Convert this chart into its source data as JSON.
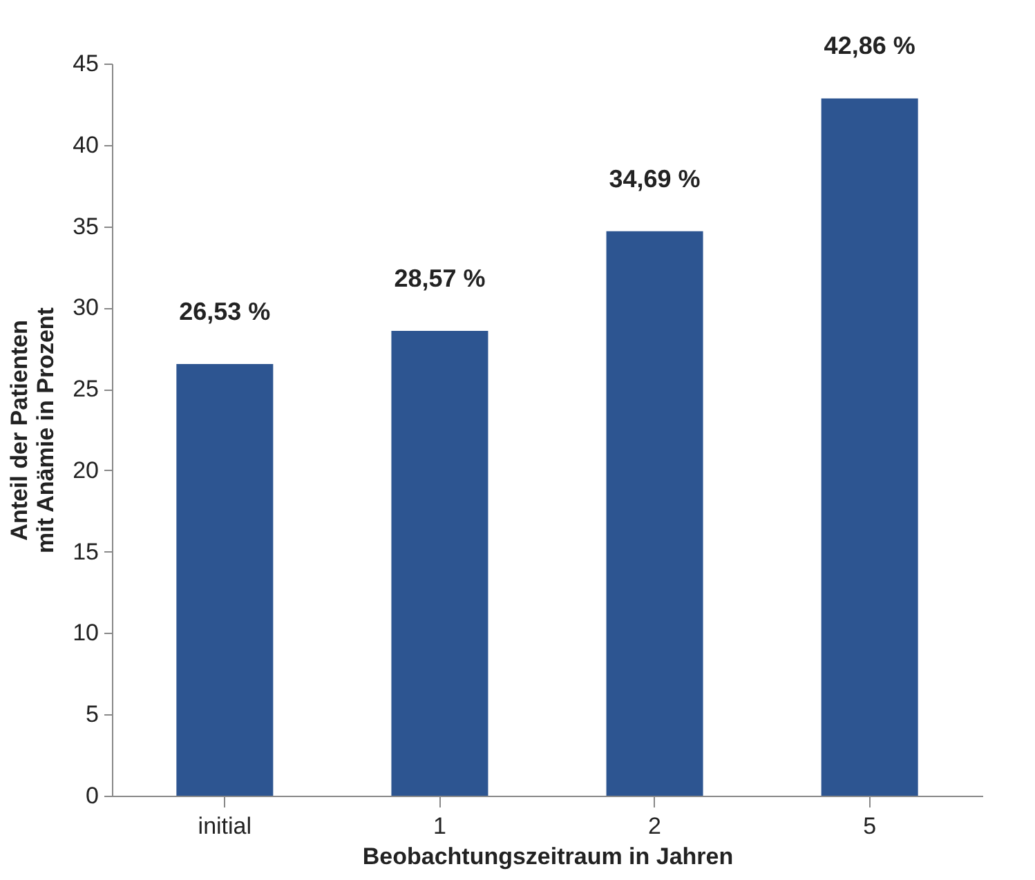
{
  "chart_data": {
    "type": "bar",
    "xlabel": "Beobachtungszeitraum in Jahren",
    "ylabel": "Anteil der Patienten\nmit Anämie in Prozent",
    "categories": [
      "initial",
      "1",
      "2",
      "5"
    ],
    "values": [
      26.53,
      28.57,
      34.69,
      42.86
    ],
    "value_labels": [
      "26,53 %",
      "28,57 %",
      "34,69 %",
      "42,86 %"
    ],
    "color": "#2d5591",
    "ylim": [
      0,
      45
    ],
    "yticks": [
      0,
      5,
      10,
      15,
      20,
      25,
      30,
      35,
      40,
      45
    ],
    "grid": false
  }
}
